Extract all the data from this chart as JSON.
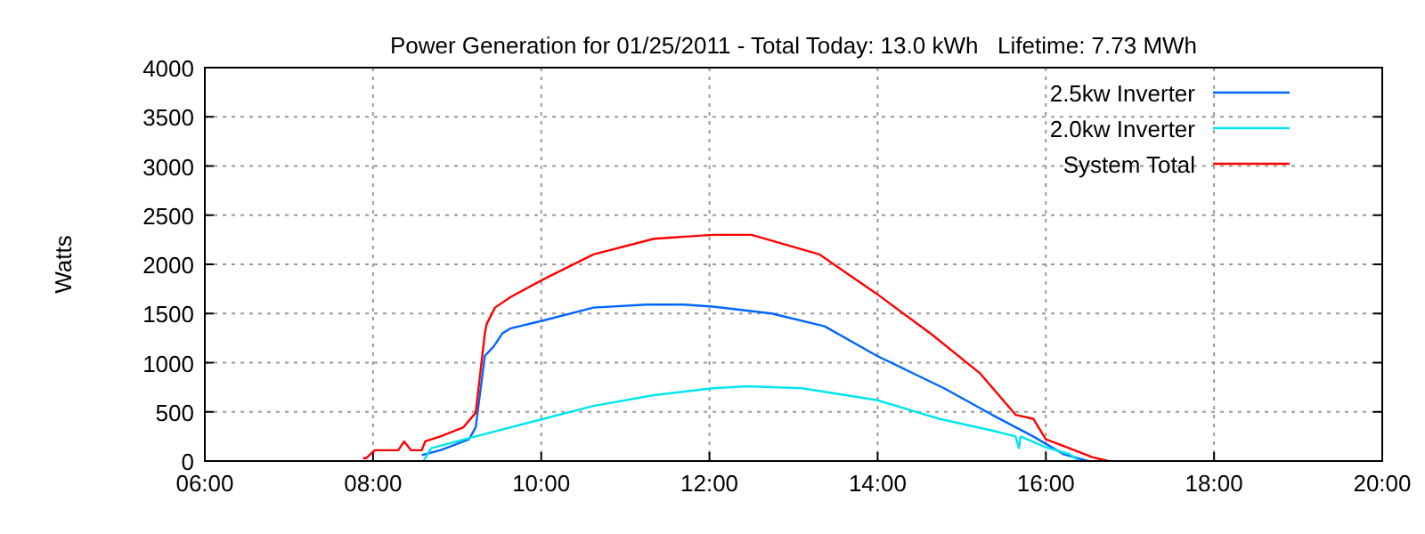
{
  "chart_data": {
    "type": "line",
    "title": "Power Generation for 01/25/2011 - Total Today: 13.0 kWh   Lifetime: 7.73 MWh",
    "ylabel": "Watts",
    "xlim": [
      6,
      20
    ],
    "xticks": [
      {
        "value": 6,
        "label": "06:00"
      },
      {
        "value": 8,
        "label": "08:00"
      },
      {
        "value": 10,
        "label": "10:00"
      },
      {
        "value": 12,
        "label": "12:00"
      },
      {
        "value": 14,
        "label": "14:00"
      },
      {
        "value": 16,
        "label": "16:00"
      },
      {
        "value": 18,
        "label": "18:00"
      },
      {
        "value": 20,
        "label": "20:00"
      }
    ],
    "ylim": [
      0,
      4000
    ],
    "yticks": [
      0,
      500,
      1000,
      1500,
      2000,
      2500,
      3000,
      3500,
      4000
    ],
    "grid": true,
    "legend": "top right",
    "marker": "none",
    "line_style": "solid",
    "series": [
      {
        "name": "2.5kw Inverter",
        "color": "#0066ff",
        "x": [
          8.58,
          8.8,
          9.14,
          9.22,
          9.33,
          9.43,
          9.54,
          9.64,
          10.03,
          10.62,
          11.25,
          11.7,
          12.04,
          12.74,
          13.37,
          13.99,
          14.79,
          15.36,
          15.85,
          16.21,
          16.42,
          16.5
        ],
        "values": [
          60,
          110,
          220,
          340,
          1070,
          1160,
          1300,
          1350,
          1430,
          1560,
          1590,
          1590,
          1570,
          1500,
          1370,
          1070,
          740,
          470,
          250,
          70,
          20,
          0
        ]
      },
      {
        "name": "2.0kw Inverter",
        "color": "#00e5ee",
        "x": [
          8.6,
          8.69,
          9.22,
          10.03,
          10.62,
          11.34,
          12.04,
          12.46,
          13.1,
          13.99,
          14.73,
          15.36,
          15.64,
          15.68,
          15.7,
          16.0,
          16.28,
          16.4
        ],
        "values": [
          0,
          130,
          250,
          430,
          560,
          670,
          740,
          760,
          740,
          620,
          430,
          310,
          250,
          130,
          250,
          140,
          70,
          0
        ]
      },
      {
        "name": "System Total",
        "color": "#ff0000",
        "x": [
          7.88,
          7.92,
          8.02,
          8.3,
          8.37,
          8.45,
          8.58,
          8.62,
          8.8,
          9.07,
          9.22,
          9.33,
          9.35,
          9.45,
          9.64,
          10.03,
          10.62,
          11.34,
          12.04,
          12.5,
          13.31,
          13.99,
          14.64,
          15.22,
          15.64,
          15.85,
          16.0,
          16.28,
          16.55,
          16.74
        ],
        "values": [
          30,
          30,
          110,
          110,
          200,
          110,
          110,
          200,
          250,
          340,
          490,
          1300,
          1390,
          1560,
          1670,
          1850,
          2100,
          2260,
          2300,
          2300,
          2100,
          1700,
          1290,
          890,
          470,
          430,
          220,
          130,
          40,
          0
        ]
      }
    ]
  }
}
